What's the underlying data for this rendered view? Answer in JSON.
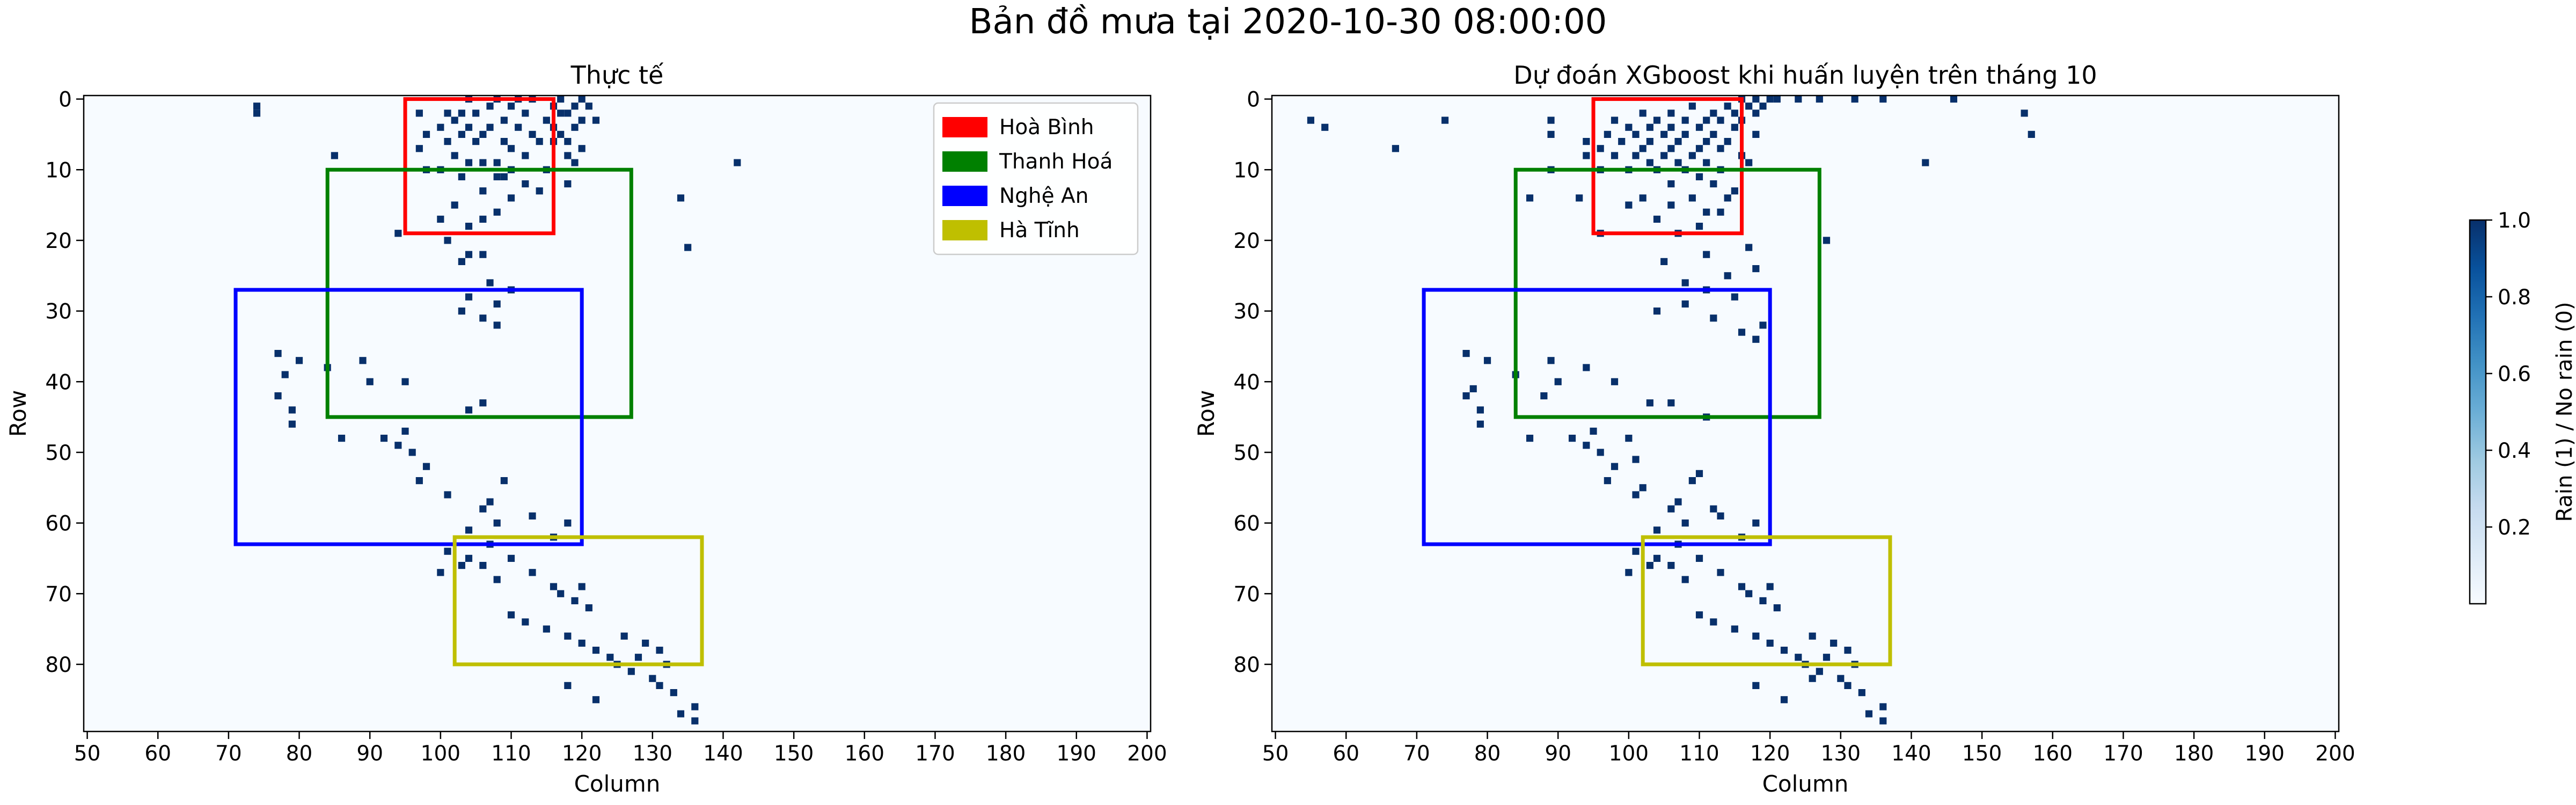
{
  "figure": {
    "suptitle": "Bản đồ mưa tại 2020-10-30 08:00:00"
  },
  "colorbar": {
    "label": "Rain (1) / No rain (0)",
    "ticks": [
      "0.2",
      "0.4",
      "0.6",
      "0.8",
      "1.0"
    ],
    "tick_values": [
      0.2,
      0.4,
      0.6,
      0.8,
      1.0
    ],
    "low_color": "#f7fbff",
    "high_color": "#08306b"
  },
  "regions": [
    {
      "name": "Hoà Bình",
      "color": "#ff0000",
      "row_min": 0,
      "row_max": 19,
      "col_min": 95,
      "col_max": 116
    },
    {
      "name": "Thanh Hoá",
      "color": "#008000",
      "row_min": 10,
      "row_max": 45,
      "col_min": 84,
      "col_max": 127
    },
    {
      "name": "Nghệ An",
      "color": "#0000ff",
      "row_min": 27,
      "row_max": 63,
      "col_min": 71,
      "col_max": 120
    },
    {
      "name": "Hà Tĩnh",
      "color": "#bfbf00",
      "row_min": 62,
      "row_max": 80,
      "col_min": 102,
      "col_max": 137
    }
  ],
  "chart_data": [
    {
      "type": "heatmap",
      "title": "Thực tế",
      "xlabel": "Column",
      "ylabel": "Row",
      "xlim": [
        49.5,
        200.5
      ],
      "ylim": [
        89.5,
        -0.5
      ],
      "xticks": [
        50,
        60,
        70,
        80,
        90,
        100,
        110,
        120,
        130,
        140,
        150,
        160,
        170,
        180,
        190,
        200
      ],
      "yticks": [
        0,
        10,
        20,
        30,
        40,
        50,
        60,
        70,
        80
      ],
      "legend": "top-right",
      "rain_cells": [
        [
          1,
          74
        ],
        [
          2,
          74
        ],
        [
          0,
          104
        ],
        [
          0,
          108
        ],
        [
          0,
          111
        ],
        [
          0,
          113
        ],
        [
          0,
          117
        ],
        [
          0,
          120
        ],
        [
          1,
          107
        ],
        [
          1,
          110
        ],
        [
          1,
          116
        ],
        [
          1,
          119
        ],
        [
          1,
          121
        ],
        [
          2,
          97
        ],
        [
          2,
          101
        ],
        [
          2,
          103
        ],
        [
          2,
          105
        ],
        [
          2,
          112
        ],
        [
          2,
          117
        ],
        [
          2,
          118
        ],
        [
          3,
          102
        ],
        [
          3,
          109
        ],
        [
          3,
          115
        ],
        [
          3,
          120
        ],
        [
          3,
          122
        ],
        [
          4,
          100
        ],
        [
          4,
          104
        ],
        [
          4,
          107
        ],
        [
          4,
          111
        ],
        [
          4,
          116
        ],
        [
          4,
          119
        ],
        [
          5,
          98
        ],
        [
          5,
          103
        ],
        [
          5,
          106
        ],
        [
          5,
          113
        ],
        [
          5,
          117
        ],
        [
          6,
          101
        ],
        [
          6,
          105
        ],
        [
          6,
          109
        ],
        [
          6,
          114
        ],
        [
          6,
          116
        ],
        [
          6,
          118
        ],
        [
          7,
          97
        ],
        [
          7,
          110
        ],
        [
          7,
          120
        ],
        [
          8,
          85
        ],
        [
          8,
          102
        ],
        [
          8,
          112
        ],
        [
          8,
          118
        ],
        [
          9,
          104
        ],
        [
          9,
          106
        ],
        [
          9,
          108
        ],
        [
          9,
          119
        ],
        [
          9,
          142
        ],
        [
          10,
          98
        ],
        [
          10,
          100
        ],
        [
          10,
          110
        ],
        [
          10,
          115
        ],
        [
          11,
          108
        ],
        [
          11,
          109
        ],
        [
          11,
          103
        ],
        [
          12,
          112
        ],
        [
          12,
          118
        ],
        [
          13,
          106
        ],
        [
          13,
          114
        ],
        [
          14,
          110
        ],
        [
          14,
          134
        ],
        [
          15,
          102
        ],
        [
          16,
          108
        ],
        [
          17,
          100
        ],
        [
          17,
          106
        ],
        [
          18,
          104
        ],
        [
          19,
          94
        ],
        [
          20,
          101
        ],
        [
          21,
          135
        ],
        [
          22,
          104
        ],
        [
          22,
          106
        ],
        [
          23,
          103
        ],
        [
          26,
          107
        ],
        [
          27,
          110
        ],
        [
          28,
          104
        ],
        [
          29,
          108
        ],
        [
          30,
          103
        ],
        [
          31,
          106
        ],
        [
          32,
          108
        ],
        [
          36,
          77
        ],
        [
          37,
          80
        ],
        [
          37,
          89
        ],
        [
          38,
          84
        ],
        [
          39,
          78
        ],
        [
          40,
          90
        ],
        [
          40,
          95
        ],
        [
          42,
          77
        ],
        [
          43,
          106
        ],
        [
          44,
          79
        ],
        [
          44,
          104
        ],
        [
          46,
          79
        ],
        [
          47,
          95
        ],
        [
          48,
          86
        ],
        [
          48,
          92
        ],
        [
          49,
          94
        ],
        [
          50,
          96
        ],
        [
          52,
          98
        ],
        [
          54,
          97
        ],
        [
          54,
          109
        ],
        [
          56,
          101
        ],
        [
          57,
          107
        ],
        [
          58,
          106
        ],
        [
          59,
          113
        ],
        [
          60,
          108
        ],
        [
          60,
          118
        ],
        [
          61,
          104
        ],
        [
          62,
          116
        ],
        [
          63,
          107
        ],
        [
          64,
          101
        ],
        [
          65,
          104
        ],
        [
          65,
          110
        ],
        [
          66,
          103
        ],
        [
          66,
          106
        ],
        [
          67,
          100
        ],
        [
          67,
          113
        ],
        [
          68,
          108
        ],
        [
          69,
          116
        ],
        [
          69,
          120
        ],
        [
          70,
          117
        ],
        [
          71,
          119
        ],
        [
          72,
          121
        ],
        [
          73,
          110
        ],
        [
          74,
          112
        ],
        [
          75,
          115
        ],
        [
          76,
          118
        ],
        [
          77,
          120
        ],
        [
          78,
          122
        ],
        [
          79,
          124
        ],
        [
          80,
          125
        ],
        [
          81,
          127
        ],
        [
          82,
          130
        ],
        [
          83,
          118
        ],
        [
          83,
          131
        ],
        [
          84,
          133
        ],
        [
          85,
          122
        ],
        [
          86,
          136
        ],
        [
          87,
          134
        ],
        [
          88,
          136
        ],
        [
          76,
          126
        ],
        [
          77,
          129
        ],
        [
          78,
          131
        ],
        [
          79,
          128
        ],
        [
          80,
          132
        ]
      ]
    },
    {
      "type": "heatmap",
      "title": "Dự đoán XGboost khi huấn luyện trên tháng 10",
      "xlabel": "Column",
      "ylabel": "Row",
      "xlim": [
        49.5,
        200.5
      ],
      "ylim": [
        89.5,
        -0.5
      ],
      "xticks": [
        50,
        60,
        70,
        80,
        90,
        100,
        110,
        120,
        130,
        140,
        150,
        160,
        170,
        180,
        190,
        200
      ],
      "yticks": [
        0,
        10,
        20,
        30,
        40,
        50,
        60,
        70,
        80
      ],
      "rain_cells": [
        [
          3,
          55
        ],
        [
          4,
          57
        ],
        [
          3,
          74
        ],
        [
          7,
          67
        ],
        [
          2,
          156
        ],
        [
          5,
          157
        ],
        [
          9,
          142
        ],
        [
          0,
          116
        ],
        [
          0,
          118
        ],
        [
          0,
          120
        ],
        [
          0,
          121
        ],
        [
          0,
          124
        ],
        [
          0,
          127
        ],
        [
          0,
          132
        ],
        [
          0,
          136
        ],
        [
          0,
          146
        ],
        [
          1,
          109
        ],
        [
          1,
          114
        ],
        [
          1,
          117
        ],
        [
          1,
          119
        ],
        [
          2,
          102
        ],
        [
          2,
          106
        ],
        [
          2,
          112
        ],
        [
          2,
          115
        ],
        [
          2,
          118
        ],
        [
          3,
          89
        ],
        [
          3,
          98
        ],
        [
          3,
          104
        ],
        [
          3,
          108
        ],
        [
          3,
          111
        ],
        [
          3,
          113
        ],
        [
          3,
          116
        ],
        [
          4,
          100
        ],
        [
          4,
          103
        ],
        [
          4,
          106
        ],
        [
          4,
          110
        ],
        [
          4,
          115
        ],
        [
          5,
          89
        ],
        [
          5,
          97
        ],
        [
          5,
          101
        ],
        [
          5,
          105
        ],
        [
          5,
          108
        ],
        [
          5,
          112
        ],
        [
          5,
          118
        ],
        [
          6,
          94
        ],
        [
          6,
          99
        ],
        [
          6,
          103
        ],
        [
          6,
          107
        ],
        [
          6,
          111
        ],
        [
          6,
          114
        ],
        [
          7,
          96
        ],
        [
          7,
          102
        ],
        [
          7,
          106
        ],
        [
          7,
          110
        ],
        [
          7,
          113
        ],
        [
          8,
          94
        ],
        [
          8,
          98
        ],
        [
          8,
          101
        ],
        [
          8,
          105
        ],
        [
          8,
          109
        ],
        [
          8,
          116
        ],
        [
          9,
          103
        ],
        [
          9,
          107
        ],
        [
          9,
          111
        ],
        [
          9,
          117
        ],
        [
          10,
          89
        ],
        [
          10,
          96
        ],
        [
          10,
          100
        ],
        [
          10,
          104
        ],
        [
          10,
          108
        ],
        [
          10,
          113
        ],
        [
          11,
          110
        ],
        [
          12,
          106
        ],
        [
          12,
          112
        ],
        [
          13,
          115
        ],
        [
          14,
          86
        ],
        [
          14,
          93
        ],
        [
          14,
          102
        ],
        [
          14,
          109
        ],
        [
          14,
          114
        ],
        [
          15,
          100
        ],
        [
          15,
          106
        ],
        [
          16,
          111
        ],
        [
          16,
          113
        ],
        [
          17,
          104
        ],
        [
          18,
          110
        ],
        [
          19,
          96
        ],
        [
          19,
          107
        ],
        [
          20,
          128
        ],
        [
          21,
          117
        ],
        [
          22,
          111
        ],
        [
          23,
          105
        ],
        [
          24,
          118
        ],
        [
          25,
          114
        ],
        [
          26,
          108
        ],
        [
          27,
          111
        ],
        [
          28,
          115
        ],
        [
          29,
          108
        ],
        [
          30,
          104
        ],
        [
          31,
          112
        ],
        [
          32,
          119
        ],
        [
          33,
          116
        ],
        [
          34,
          118
        ],
        [
          36,
          77
        ],
        [
          37,
          80
        ],
        [
          37,
          89
        ],
        [
          38,
          94
        ],
        [
          39,
          84
        ],
        [
          40,
          90
        ],
        [
          40,
          98
        ],
        [
          41,
          78
        ],
        [
          42,
          77
        ],
        [
          42,
          88
        ],
        [
          43,
          103
        ],
        [
          43,
          106
        ],
        [
          44,
          79
        ],
        [
          45,
          111
        ],
        [
          46,
          79
        ],
        [
          47,
          95
        ],
        [
          48,
          86
        ],
        [
          48,
          92
        ],
        [
          48,
          100
        ],
        [
          49,
          94
        ],
        [
          50,
          96
        ],
        [
          51,
          101
        ],
        [
          52,
          98
        ],
        [
          53,
          110
        ],
        [
          54,
          97
        ],
        [
          54,
          109
        ],
        [
          55,
          102
        ],
        [
          56,
          101
        ],
        [
          57,
          107
        ],
        [
          58,
          106
        ],
        [
          58,
          112
        ],
        [
          59,
          113
        ],
        [
          60,
          108
        ],
        [
          60,
          118
        ],
        [
          61,
          104
        ],
        [
          62,
          116
        ],
        [
          63,
          107
        ],
        [
          64,
          101
        ],
        [
          65,
          104
        ],
        [
          65,
          110
        ],
        [
          66,
          103
        ],
        [
          66,
          106
        ],
        [
          67,
          100
        ],
        [
          67,
          113
        ],
        [
          68,
          108
        ],
        [
          69,
          116
        ],
        [
          69,
          120
        ],
        [
          70,
          117
        ],
        [
          71,
          119
        ],
        [
          72,
          121
        ],
        [
          73,
          110
        ],
        [
          74,
          112
        ],
        [
          75,
          115
        ],
        [
          76,
          118
        ],
        [
          77,
          120
        ],
        [
          78,
          122
        ],
        [
          79,
          124
        ],
        [
          80,
          125
        ],
        [
          81,
          127
        ],
        [
          82,
          130
        ],
        [
          83,
          118
        ],
        [
          83,
          131
        ],
        [
          84,
          133
        ],
        [
          85,
          122
        ],
        [
          86,
          136
        ],
        [
          87,
          134
        ],
        [
          88,
          136
        ],
        [
          76,
          126
        ],
        [
          77,
          129
        ],
        [
          78,
          131
        ],
        [
          79,
          128
        ],
        [
          80,
          132
        ],
        [
          82,
          126
        ]
      ]
    }
  ]
}
